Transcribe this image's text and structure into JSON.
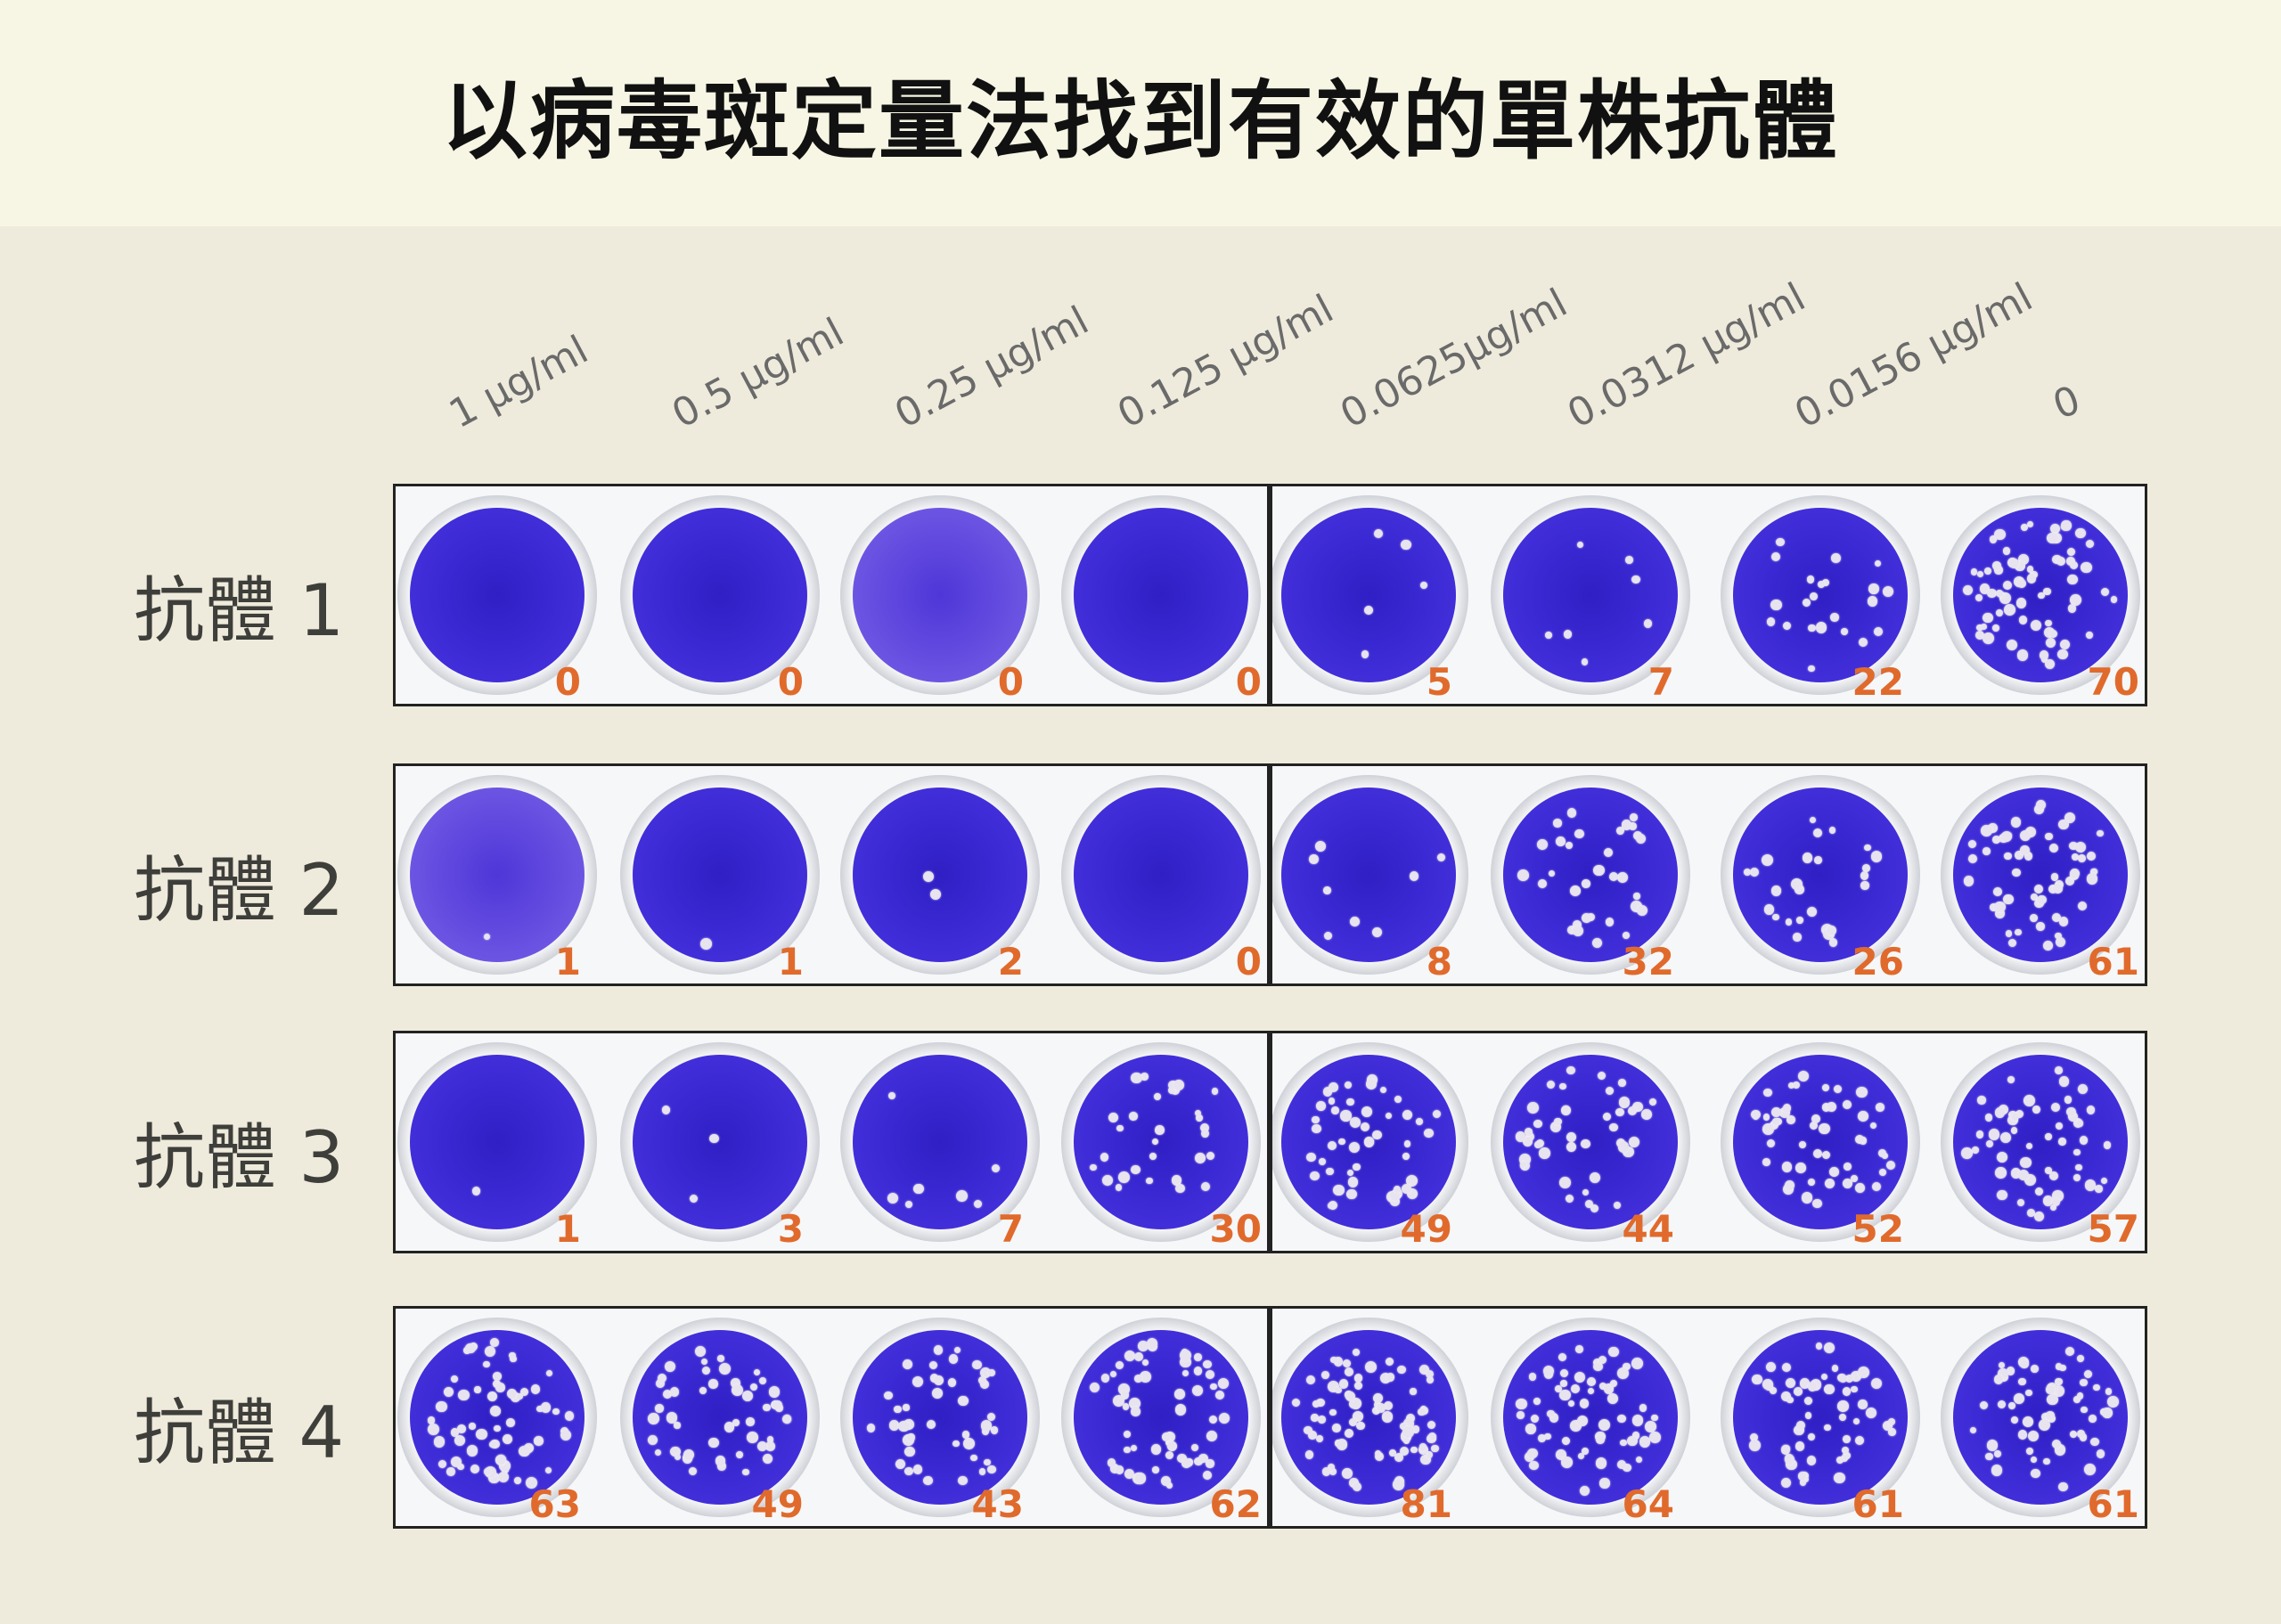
{
  "title": "以病毒斑定量法找到有效的單株抗體",
  "concentrations": [
    "1 μg/ml",
    "0.5 μg/ml",
    "0.25 μg/ml",
    "0.125 μg/ml",
    "0.0625μg/ml",
    "0.0312 μg/ml",
    "0.0156 μg/ml",
    "0"
  ],
  "rows": [
    {
      "label": "抗體 1",
      "counts": [
        "0",
        "0",
        "0",
        "0",
        "5",
        "7",
        "22",
        "70"
      ]
    },
    {
      "label": "抗體 2",
      "counts": [
        "1",
        "1",
        "2",
        "0",
        "8",
        "32",
        "26",
        "61"
      ]
    },
    {
      "label": "抗體 3",
      "counts": [
        "1",
        "3",
        "7",
        "30",
        "49",
        "44",
        "52",
        "57"
      ]
    },
    {
      "label": "抗體 4",
      "counts": [
        "63",
        "49",
        "43",
        "62",
        "81",
        "64",
        "61",
        "61"
      ]
    }
  ],
  "colors": {
    "stain": "#3d2bd6",
    "count_text": "#e06a2c",
    "header_bg": "#f7f6e4",
    "page_bg": "#efebdc"
  }
}
